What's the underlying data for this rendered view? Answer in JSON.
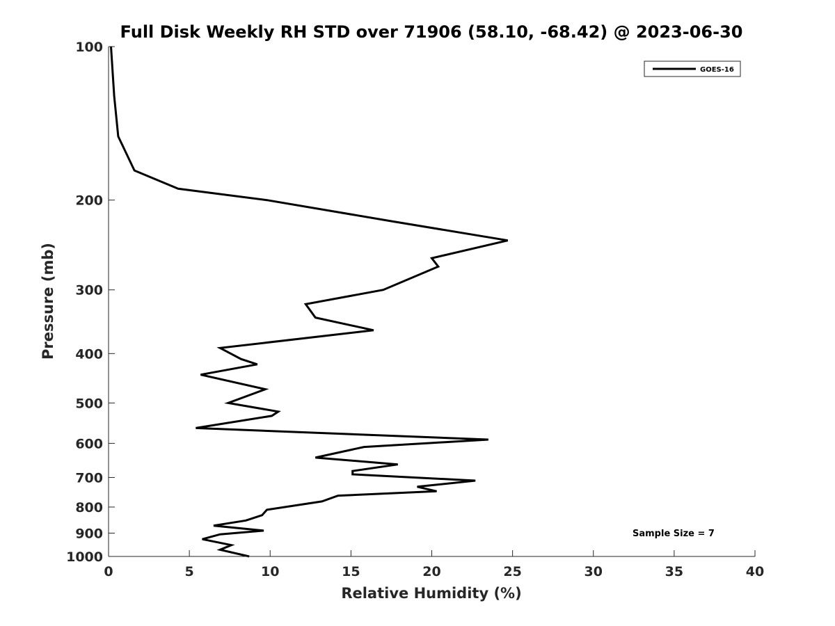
{
  "chart_data": {
    "type": "line",
    "title": "Full Disk Weekly RH STD over 71906 (58.10, -68.42) @ 2023-06-30",
    "xlabel": "Relative Humidity (%)",
    "ylabel": "Pressure (mb)",
    "xlim": [
      0,
      40
    ],
    "ylim": [
      100,
      1000
    ],
    "y_scale": "log",
    "y_reversed": true,
    "x_ticks": [
      0,
      5,
      10,
      15,
      20,
      25,
      30,
      35,
      40
    ],
    "y_ticks": [
      100,
      200,
      300,
      400,
      500,
      600,
      700,
      800,
      900,
      1000
    ],
    "grid": false,
    "legend_position": "top-right",
    "series": [
      {
        "name": "GOES-16",
        "color": "#000000",
        "points": [
          [
            0.15,
            100
          ],
          [
            0.35,
            125
          ],
          [
            0.6,
            150
          ],
          [
            1.6,
            175
          ],
          [
            4.3,
            190
          ],
          [
            9.8,
            200
          ],
          [
            17.5,
            220
          ],
          [
            24.7,
            240
          ],
          [
            20.0,
            260
          ],
          [
            20.4,
            270
          ],
          [
            17.0,
            300
          ],
          [
            12.2,
            320
          ],
          [
            12.8,
            340
          ],
          [
            16.4,
            360
          ],
          [
            6.9,
            390
          ],
          [
            8.2,
            410
          ],
          [
            9.2,
            420
          ],
          [
            5.7,
            440
          ],
          [
            9.7,
            470
          ],
          [
            7.4,
            500
          ],
          [
            10.5,
            520
          ],
          [
            10.1,
            530
          ],
          [
            5.4,
            560
          ],
          [
            23.5,
            590
          ],
          [
            15.8,
            610
          ],
          [
            12.8,
            640
          ],
          [
            17.9,
            660
          ],
          [
            15.1,
            680
          ],
          [
            15.1,
            690
          ],
          [
            22.7,
            710
          ],
          [
            19.1,
            730
          ],
          [
            20.3,
            745
          ],
          [
            14.2,
            760
          ],
          [
            13.2,
            780
          ],
          [
            9.8,
            810
          ],
          [
            9.5,
            830
          ],
          [
            8.5,
            850
          ],
          [
            6.5,
            870
          ],
          [
            9.6,
            890
          ],
          [
            6.9,
            905
          ],
          [
            5.8,
            925
          ],
          [
            7.6,
            950
          ],
          [
            6.9,
            970
          ],
          [
            8.7,
            1000
          ]
        ]
      }
    ],
    "annotations": [
      "Sample Size = 7"
    ]
  }
}
